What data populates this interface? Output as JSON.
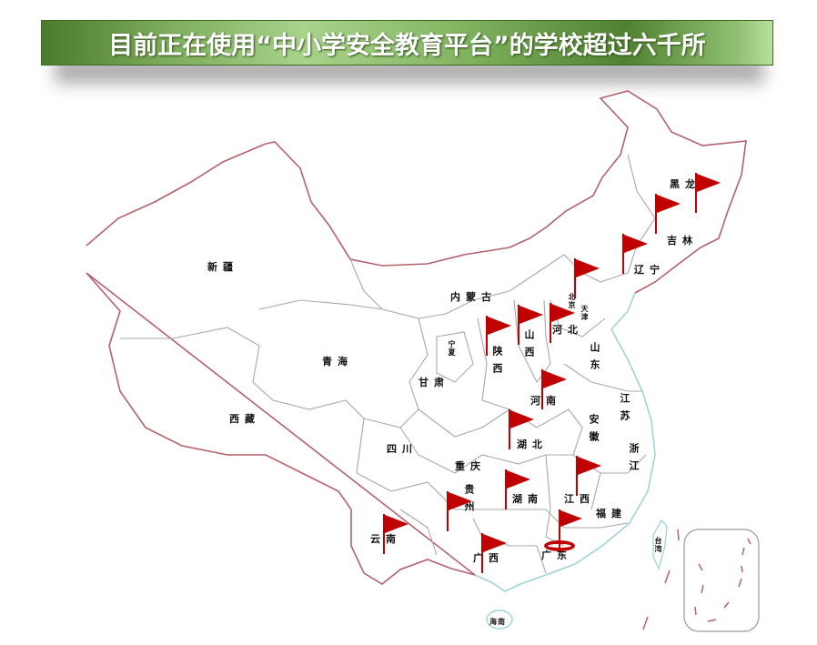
{
  "title": "目前正在使用“中小学安全教育平台”的学校超过六千所",
  "colors": {
    "border": "#b4616c",
    "coast": "#9fd3d8",
    "province_line": "#a8a8a8",
    "flag": "#c00000"
  },
  "provinces": {
    "xinjiang": "新疆",
    "xizang": "西藏",
    "qinghai": "青海",
    "gansu": "甘肃",
    "neimenggu": "内蒙古",
    "ningxia": "宁夏",
    "shaanxi": "陕西",
    "shanxi": "山西",
    "hebei": "河北",
    "beijing": "北京",
    "tianjin": "天津",
    "shandong": "山东",
    "henan": "河南",
    "jiangsu": "江苏",
    "anhui": "安徽",
    "hubei": "湖北",
    "sichuan": "四川",
    "chongqing": "重庆",
    "hunan": "湖南",
    "jiangxi": "江西",
    "zhejiang": "浙江",
    "fujian": "福建",
    "guizhou": "贵州",
    "yunnan": "云南",
    "guangxi": "广西",
    "guangdong": "广东",
    "hainan": "海南",
    "taiwan": "台湾",
    "heilongjiang": "黑龙",
    "jilin": "吉林",
    "liaoning": "辽宁"
  },
  "flag_icon": "red-flag-icon",
  "highlight_icon": "location-ring-icon"
}
